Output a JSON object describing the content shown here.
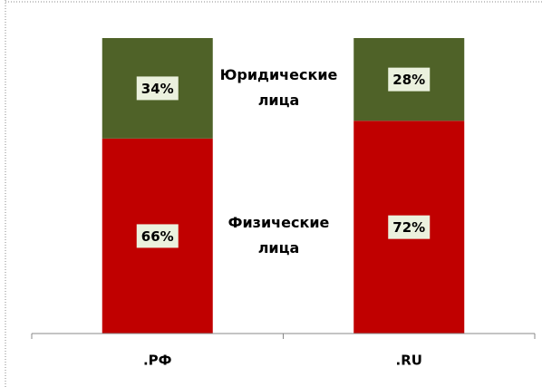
{
  "chart_data": {
    "type": "stacked_bar",
    "categories": [
      ".РФ",
      ".RU"
    ],
    "series": [
      {
        "name": "Физические лица",
        "color": "#c00000",
        "values": [
          66,
          72
        ],
        "value_labels": [
          "66%",
          "72%"
        ]
      },
      {
        "name": "Юридические лица",
        "color": "#4f6228",
        "values": [
          34,
          28
        ],
        "value_labels": [
          "34%",
          "28%"
        ]
      }
    ],
    "ylim": [
      0,
      100
    ]
  }
}
